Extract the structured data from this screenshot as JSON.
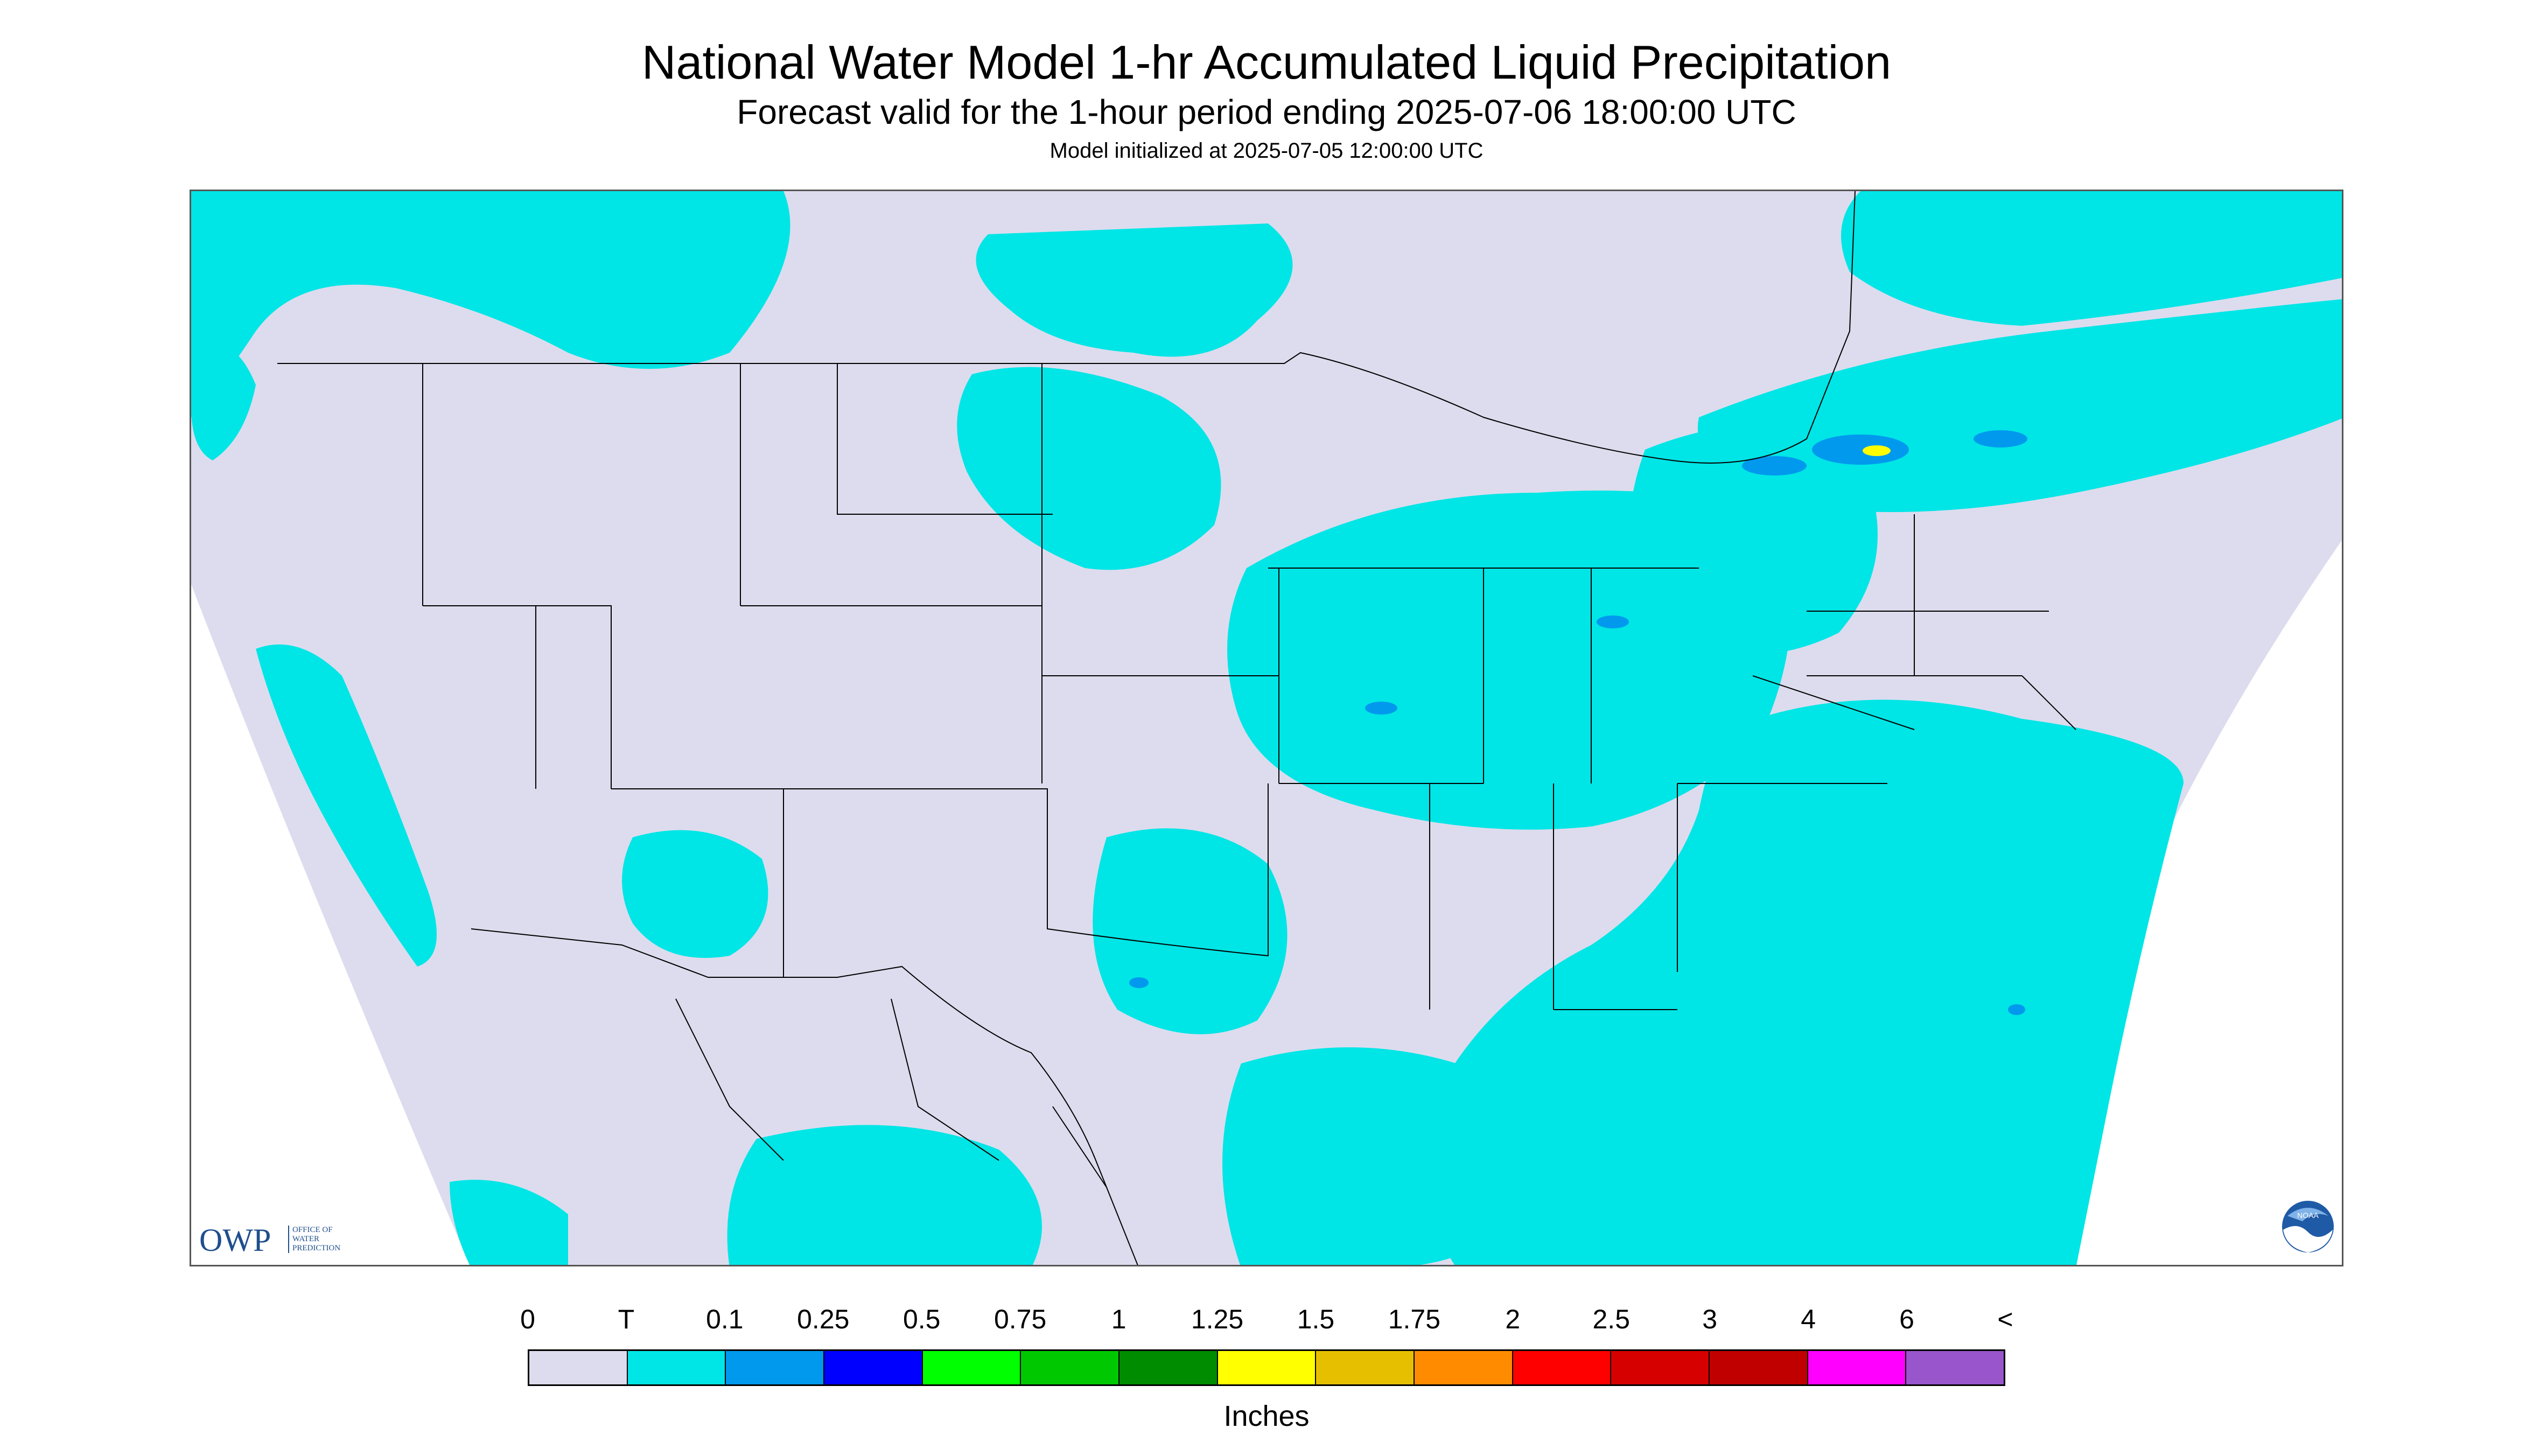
{
  "header": {
    "title": "National Water Model 1-hr Accumulated Liquid Precipitation",
    "subtitle": "Forecast valid for the 1-hour period ending 2025-07-06 18:00:00 UTC",
    "init": "Model initialized at 2025-07-05 12:00:00 UTC"
  },
  "map": {
    "background_color": "#dcdcee",
    "precip_color": "#00e5e5",
    "heavy_color": "#0099ee",
    "max_color": "#ffff00",
    "line_color": "#000000"
  },
  "logos": {
    "owp_main": "OWP",
    "owp_sub": "Office of Water Prediction",
    "noaa": "NOAA"
  },
  "legend": {
    "labels": [
      "0",
      "T",
      "0.1",
      "0.25",
      "0.5",
      "0.75",
      "1",
      "1.25",
      "1.5",
      "1.75",
      "2",
      "2.5",
      "3",
      "4",
      "6",
      "<"
    ],
    "colors": [
      "#dcdcee",
      "#00e5e5",
      "#0099ee",
      "#0000ff",
      "#00ff00",
      "#00c800",
      "#008c00",
      "#ffff00",
      "#e6c000",
      "#ff8c00",
      "#ff0000",
      "#d70000",
      "#c00000",
      "#ff00ff",
      "#9955cc"
    ],
    "unit": "Inches"
  }
}
